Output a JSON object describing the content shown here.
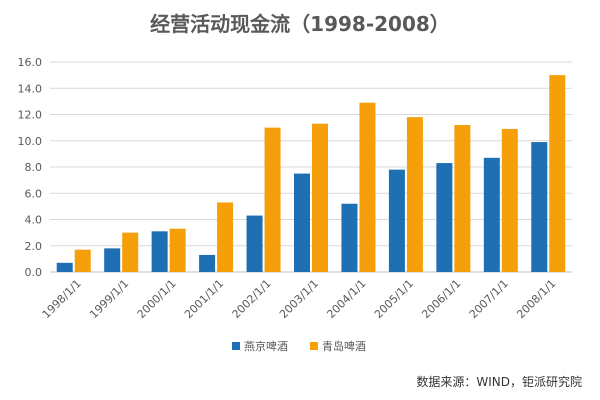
{
  "chart_data": {
    "type": "bar",
    "title": "经营活动现金流（1998-2008）",
    "xlabel": "",
    "ylabel": "",
    "ylim": [
      0,
      16
    ],
    "yticks": [
      "0.0",
      "2.0",
      "4.0",
      "6.0",
      "8.0",
      "10.0",
      "12.0",
      "14.0",
      "16.0"
    ],
    "grid": true,
    "legend_position": "bottom",
    "categories": [
      "1998/1/1",
      "1999/1/1",
      "2000/1/1",
      "2001/1/1",
      "2002/1/1",
      "2003/1/1",
      "2004/1/1",
      "2005/1/1",
      "2006/1/1",
      "2007/1/1",
      "2008/1/1"
    ],
    "series": [
      {
        "name": "燕京啤酒",
        "color": "#1f6fb5",
        "values": [
          0.7,
          1.8,
          3.1,
          1.3,
          4.3,
          7.5,
          5.2,
          7.8,
          8.3,
          8.7,
          9.9
        ]
      },
      {
        "name": "青岛啤酒",
        "color": "#f5a00a",
        "values": [
          1.7,
          3.0,
          3.3,
          5.3,
          11.0,
          11.3,
          12.9,
          11.8,
          11.2,
          10.9,
          15.0
        ]
      }
    ],
    "source": "数据来源：WIND，钜派研究院"
  }
}
